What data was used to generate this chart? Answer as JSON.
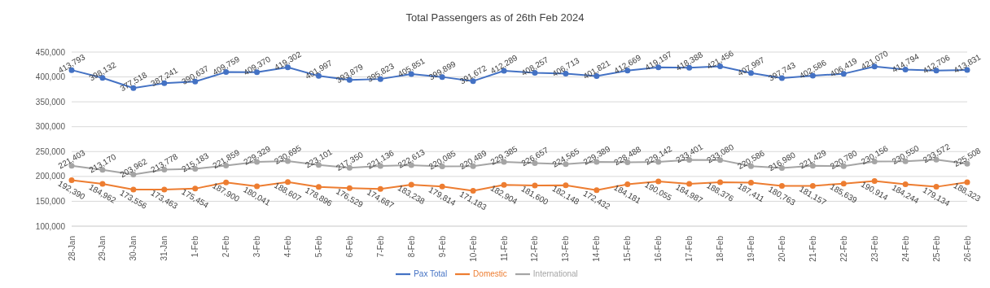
{
  "chart_data": {
    "type": "line",
    "title": "Total Passengers as of 26th Feb 2024",
    "categories": [
      "28-Jan",
      "29-Jan",
      "30-Jan",
      "31-Jan",
      "1-Feb",
      "2-Feb",
      "3-Feb",
      "4-Feb",
      "5-Feb",
      "6-Feb",
      "7-Feb",
      "8-Feb",
      "9-Feb",
      "10-Feb",
      "11-Feb",
      "12-Feb",
      "13-Feb",
      "14-Feb",
      "15-Feb",
      "16-Feb",
      "17-Feb",
      "18-Feb",
      "19-Feb",
      "20-Feb",
      "21-Feb",
      "22-Feb",
      "23-Feb",
      "24-Feb",
      "25-Feb",
      "26-Feb"
    ],
    "series": [
      {
        "name": "Pax Total",
        "color": "#4472c4",
        "values": [
          413793,
          398132,
          377518,
          387241,
          390637,
          409759,
          409370,
          419302,
          401997,
          393879,
          395823,
          405851,
          399899,
          391672,
          412289,
          408257,
          406713,
          401821,
          412669,
          419197,
          418388,
          421456,
          407997,
          397743,
          402586,
          406419,
          421070,
          414794,
          412706,
          413831
        ],
        "value_labels": [
          "413,793",
          "398,132",
          "377,518",
          "387,241",
          "390,637",
          "409,759",
          "409,370",
          "419,302",
          "401,997",
          "393,879",
          "395,823",
          "405,851",
          "399,899",
          "391,672",
          "412,289",
          "408,257",
          "406,713",
          "401,821",
          "412,669",
          "419,197",
          "418,388",
          "421,456",
          "407,997",
          "397,743",
          "402,586",
          "406,419",
          "421,070",
          "414,794",
          "412,706",
          "413,831"
        ]
      },
      {
        "name": "Domestic",
        "color": "#ed7d31",
        "values": [
          192390,
          184962,
          173556,
          173463,
          175454,
          187900,
          180041,
          188607,
          178896,
          176529,
          174687,
          183238,
          179814,
          171183,
          182904,
          181600,
          182148,
          172432,
          184181,
          190055,
          184987,
          188376,
          187411,
          180763,
          181157,
          185639,
          190914,
          184244,
          179134,
          188323
        ],
        "value_labels": [
          "192,390",
          "184,962",
          "173,556",
          "173,463",
          "175,454",
          "187,900",
          "180,041",
          "188,607",
          "178,896",
          "176,529",
          "174,687",
          "183,238",
          "179,814",
          "171,183",
          "182,904",
          "181,600",
          "182,148",
          "172,432",
          "184,181",
          "190,055",
          "184,987",
          "188,376",
          "187,411",
          "180,763",
          "181,157",
          "185,639",
          "190,914",
          "184,244",
          "179,134",
          "188,323"
        ]
      },
      {
        "name": "International",
        "color": "#a5a5a5",
        "values": [
          221403,
          213170,
          203962,
          213778,
          215183,
          221859,
          229329,
          230695,
          223101,
          217350,
          221136,
          222613,
          220085,
          220489,
          229385,
          226657,
          224565,
          229389,
          228488,
          229142,
          233401,
          233080,
          220586,
          216980,
          221429,
          220780,
          230156,
          230550,
          233572,
          225508
        ],
        "value_labels": [
          "221,403",
          "213,170",
          "203,962",
          "213,778",
          "215,183",
          "221,859",
          "229,329",
          "230,695",
          "223,101",
          "217,350",
          "221,136",
          "222,613",
          "220,085",
          "220,489",
          "229,385",
          "226,657",
          "224,565",
          "229,389",
          "228,488",
          "229,142",
          "233,401",
          "233,080",
          "220,586",
          "216,980",
          "221,429",
          "220,780",
          "230,156",
          "230,550",
          "233,572",
          "225,508"
        ]
      }
    ],
    "ylim": [
      100000,
      450000
    ],
    "yticks": [
      {
        "value": 100000,
        "label": "100,000"
      },
      {
        "value": 150000,
        "label": "150,000"
      },
      {
        "value": 200000,
        "label": "200,000"
      },
      {
        "value": 250000,
        "label": "250,000"
      },
      {
        "value": 300000,
        "label": "300,000"
      },
      {
        "value": 350000,
        "label": "350,000"
      },
      {
        "value": 400000,
        "label": "400,000"
      },
      {
        "value": 450000,
        "label": "450,000"
      }
    ],
    "grid": "y",
    "legend": "bottom",
    "marker": "circle",
    "line_style": "solid"
  }
}
